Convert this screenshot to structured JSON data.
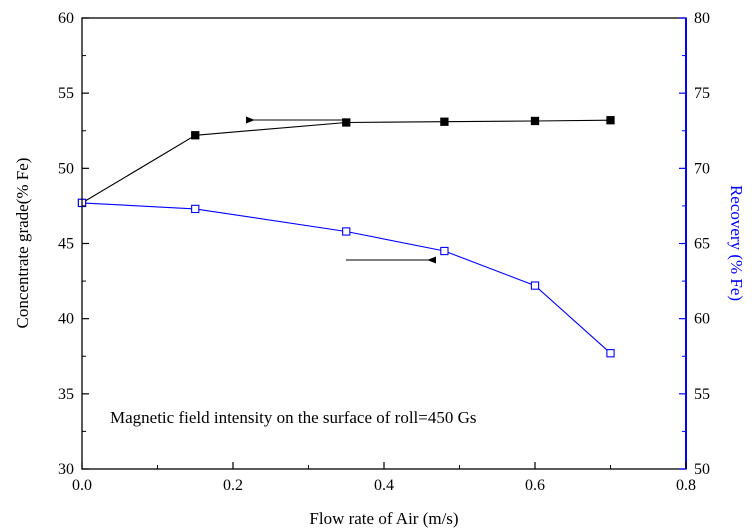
{
  "chart_data": {
    "type": "line",
    "title": "",
    "xlabel": "Flow rate of Air (m/s)",
    "ylabel_left": "Concentrate grade(% Fe)",
    "ylabel_right": "Recovery (% Fe)",
    "xlim": [
      0.0,
      0.8
    ],
    "ylim_left": [
      30,
      60
    ],
    "ylim_right": [
      50,
      80
    ],
    "x_ticks": [
      "0.0",
      "0.2",
      "0.4",
      "0.6",
      "0.8"
    ],
    "y_left_ticks": [
      "30",
      "35",
      "40",
      "45",
      "50",
      "55",
      "60"
    ],
    "y_right_ticks": [
      "50",
      "55",
      "60",
      "65",
      "70",
      "75",
      "80"
    ],
    "grid": false,
    "annotation": "Magnetic field intensity on the surface of roll=450 Gs",
    "colors": {
      "grade": "#000000",
      "recovery": "#0000ff"
    },
    "series": [
      {
        "axis": "left",
        "marker": "filled-square",
        "x": [
          0.0,
          0.15,
          0.35,
          0.48,
          0.6,
          0.7
        ],
        "values": [
          47.7,
          52.2,
          53.05,
          53.1,
          53.15,
          53.2
        ]
      },
      {
        "axis": "right",
        "marker": "open-square",
        "x": [
          0.0,
          0.15,
          0.35,
          0.48,
          0.6,
          0.7
        ],
        "values": [
          67.7,
          67.3,
          65.8,
          64.5,
          62.2,
          57.7
        ]
      }
    ]
  }
}
